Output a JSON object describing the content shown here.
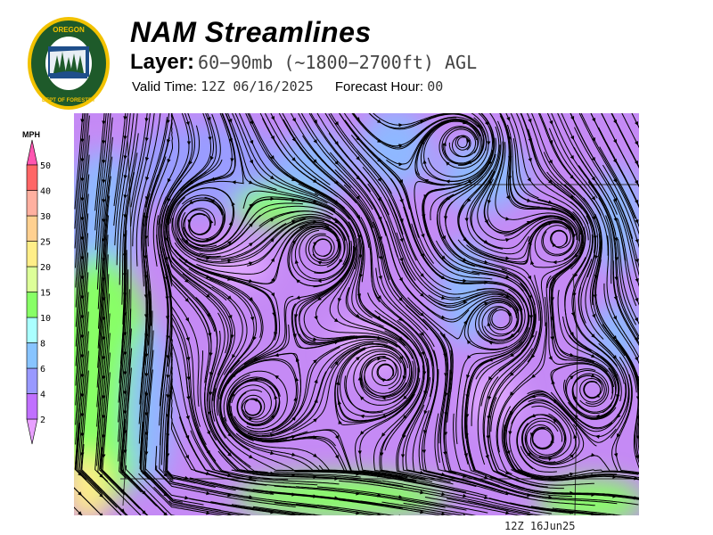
{
  "header": {
    "title": "NAM Streamlines",
    "layer_label": "Layer:",
    "layer_value": "60−90mb (~1800−2700ft) AGL",
    "valid_label": "Valid Time:",
    "valid_value": "12Z 06/16/2025",
    "forecast_label": "Forecast Hour:",
    "forecast_value": "00"
  },
  "logo": {
    "top_text": "OREGON",
    "bottom_text": "DEPARTMENT OF FORESTRY"
  },
  "legend": {
    "unit": "MPH",
    "ticks": [
      "2",
      "4",
      "6",
      "8",
      "10",
      "15",
      "20",
      "25",
      "30",
      "40",
      "50"
    ],
    "colors": [
      "#c070ff",
      "#9999ff",
      "#88c4ff",
      "#aaffff",
      "#88ff66",
      "#ddff99",
      "#ffee88",
      "#ffd090",
      "#ffb0a0",
      "#ff6666"
    ],
    "over_color": "#ff55b0",
    "under_color": "#e8a0ff"
  },
  "footer": {
    "stamp": "12Z 16Jun25"
  }
}
